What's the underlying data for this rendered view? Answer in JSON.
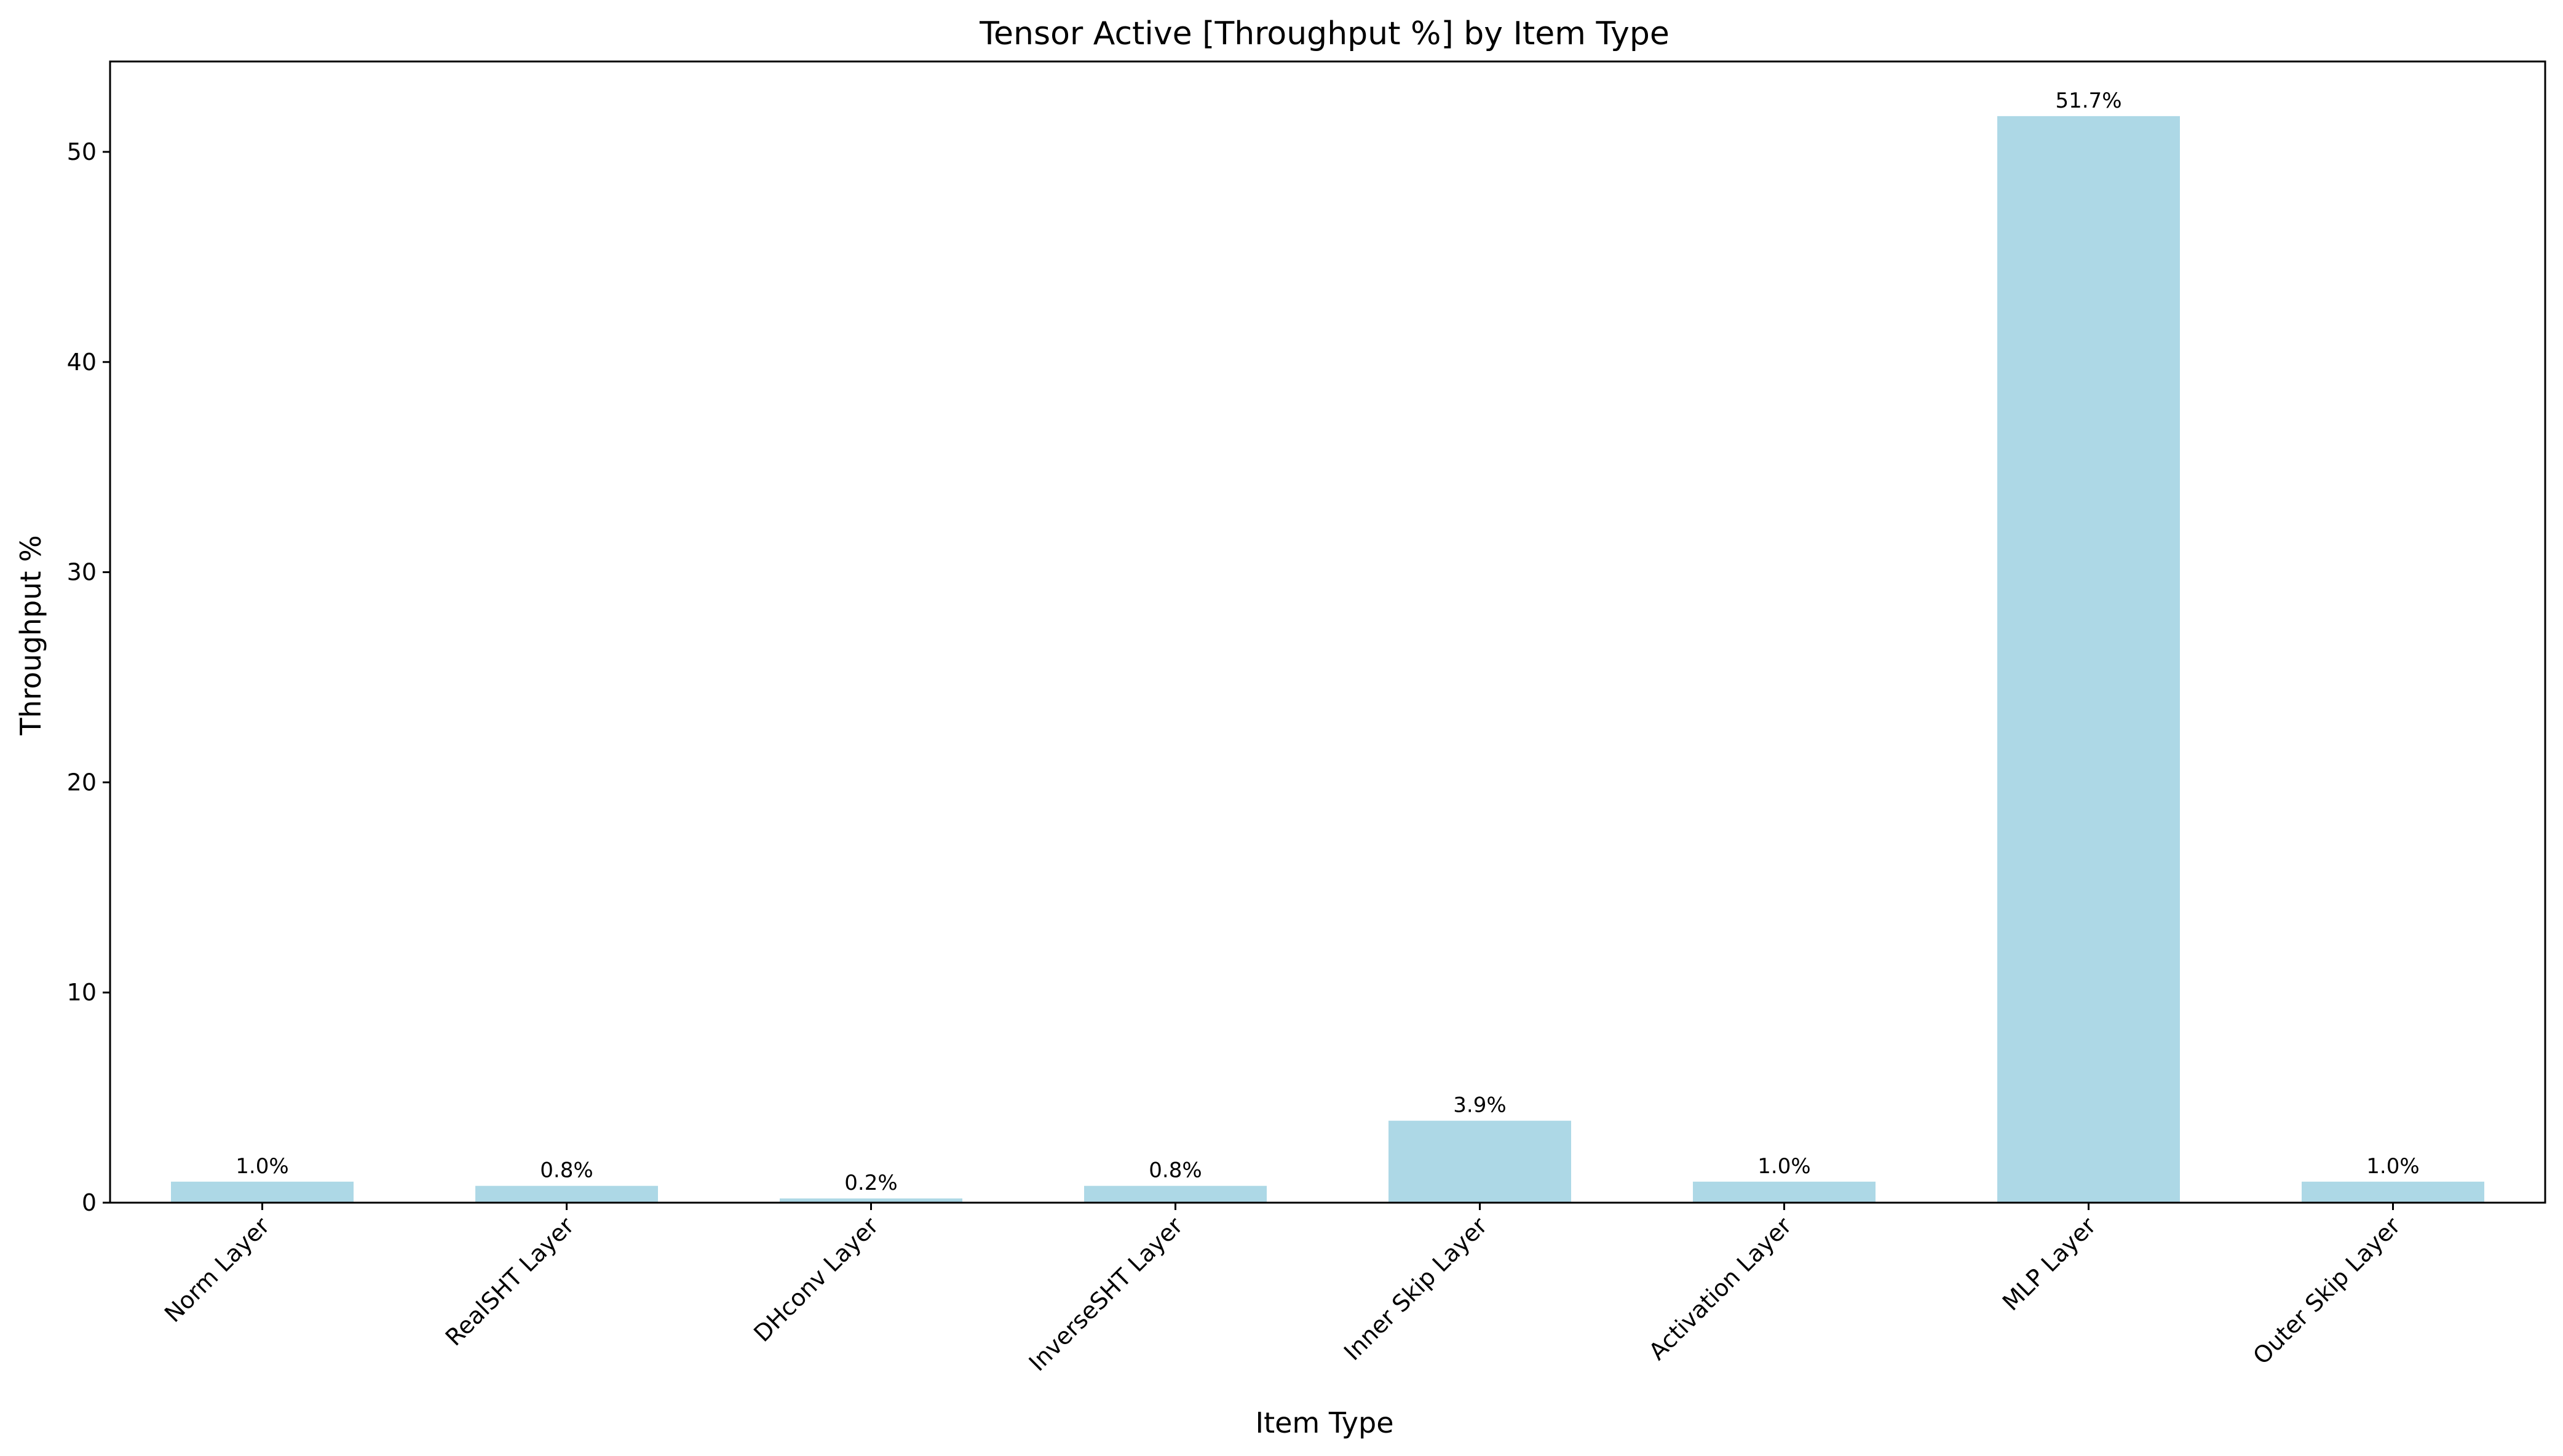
{
  "chart_data": {
    "type": "bar",
    "title": "Tensor Active [Throughput %] by Item Type",
    "xlabel": "Item Type",
    "ylabel": "Throughput %",
    "categories": [
      "Norm Layer",
      "RealSHT Layer",
      "DHconv Layer",
      "InverseSHT Layer",
      "Inner Skip Layer",
      "Activation Layer",
      "MLP Layer",
      "Outer Skip Layer"
    ],
    "values": [
      1.0,
      0.8,
      0.2,
      0.8,
      3.9,
      1.0,
      51.7,
      1.0
    ],
    "data_labels": [
      "1.0%",
      "0.8%",
      "0.2%",
      "0.8%",
      "3.9%",
      "1.0%",
      "51.7%",
      "1.0%"
    ],
    "yticks": [
      0,
      10,
      20,
      30,
      40,
      50
    ],
    "ylim": [
      0,
      54.3
    ],
    "grid": false,
    "legend": "none",
    "bar_color": "#add8e6"
  }
}
